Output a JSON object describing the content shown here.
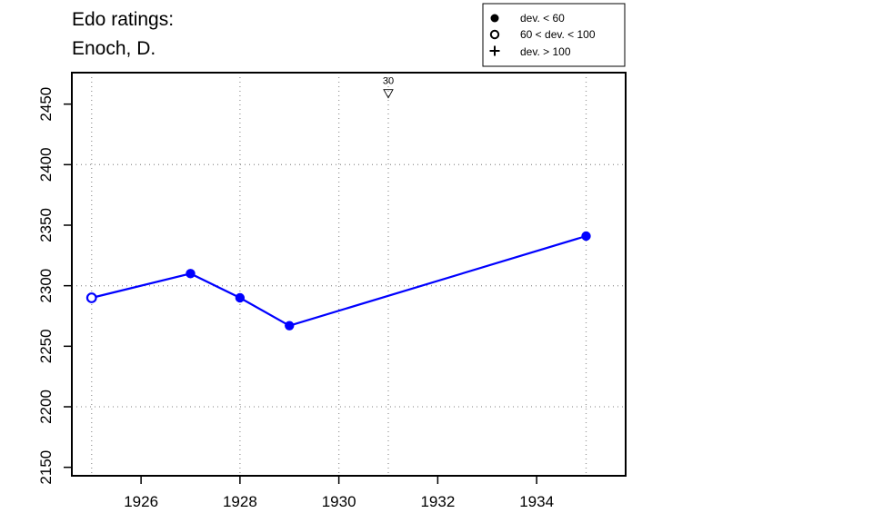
{
  "title_lines": [
    "Edo ratings:",
    "Enoch, D."
  ],
  "legend": {
    "entries": [
      {
        "symbol": "filled-circle",
        "label": "dev. < 60"
      },
      {
        "symbol": "open-circle",
        "label": "60 < dev. < 100"
      },
      {
        "symbol": "plus",
        "label": "dev. > 100"
      }
    ],
    "placement": "top-right, above plot"
  },
  "chart_data": {
    "type": "line",
    "series_color": "#0000ff",
    "points": [
      {
        "x": 1925,
        "y": 2290,
        "marker": "open-circle"
      },
      {
        "x": 1927,
        "y": 2310,
        "marker": "filled-circle"
      },
      {
        "x": 1928,
        "y": 2290,
        "marker": "filled-circle"
      },
      {
        "x": 1929,
        "y": 2267,
        "marker": "filled-circle"
      },
      {
        "x": 1935,
        "y": 2341,
        "marker": "filled-circle"
      }
    ],
    "annotations": [
      {
        "x": 1931,
        "y": 2459,
        "symbol": "down-triangle",
        "label": "30"
      }
    ],
    "xlim": [
      1924.6,
      1935.8
    ],
    "ylim": [
      2143,
      2476
    ],
    "x_ticks": [
      1926,
      1928,
      1930,
      1932,
      1934
    ],
    "y_ticks": [
      2150,
      2200,
      2250,
      2300,
      2350,
      2400,
      2450
    ],
    "x_grid": [
      1925,
      1928,
      1930,
      1931,
      1935
    ],
    "y_grid": [
      2200,
      2300,
      2400
    ],
    "grid": true,
    "grid_style": "dotted",
    "xlabel": "",
    "ylabel": ""
  }
}
